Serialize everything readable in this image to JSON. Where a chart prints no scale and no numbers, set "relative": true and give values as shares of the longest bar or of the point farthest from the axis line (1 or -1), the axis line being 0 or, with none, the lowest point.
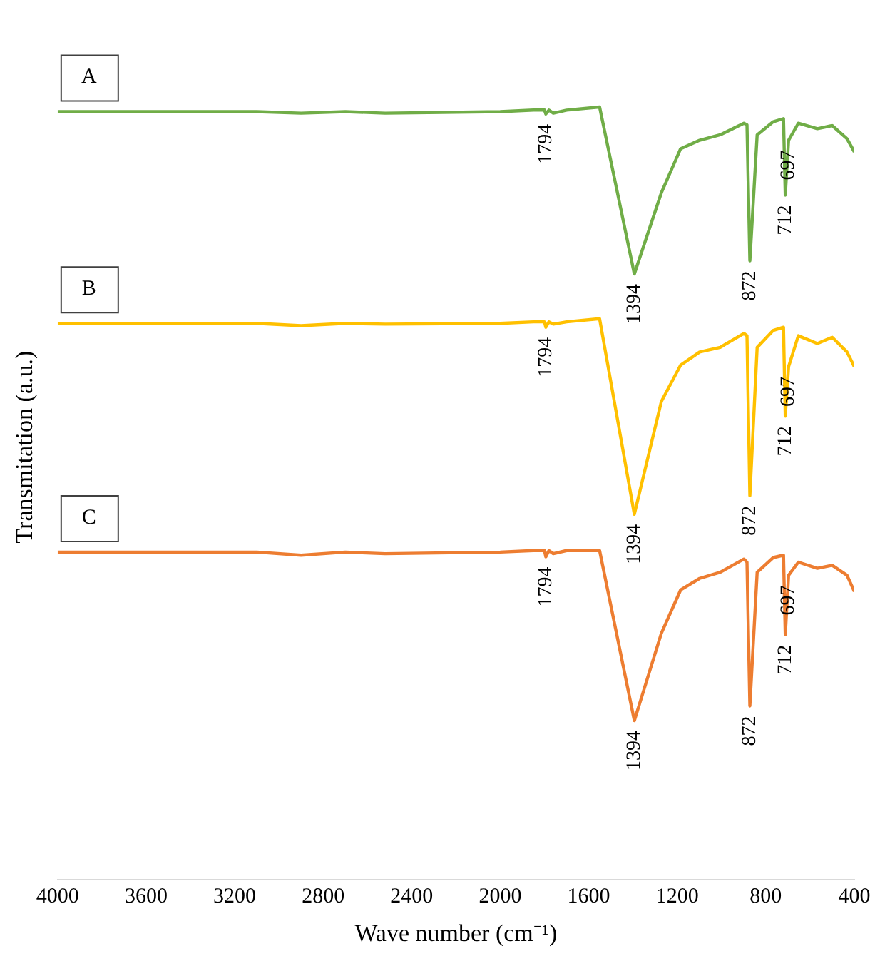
{
  "chart_data": {
    "type": "line",
    "relative": true,
    "xlabel": "Wave number (cm⁻¹)",
    "ylabel": "Transmitation (a.u.)",
    "xlim": [
      4000,
      400
    ],
    "xticks": [
      4000,
      3600,
      3200,
      2800,
      2400,
      2000,
      1600,
      1200,
      800,
      400
    ],
    "x": [
      4000,
      3600,
      3100,
      2900,
      2700,
      2520,
      2000,
      1850,
      1800,
      1794,
      1780,
      1760,
      1700,
      1551,
      1394,
      1272,
      1185,
      1099,
      1006,
      899,
      885,
      872,
      839,
      766,
      720,
      712,
      697,
      653,
      567,
      500,
      433,
      400
    ],
    "series": [
      {
        "name": "A",
        "color": "#70ad47",
        "values": [
          0.994,
          0.994,
          0.994,
          0.992,
          0.994,
          0.992,
          0.994,
          0.996,
          0.996,
          0.991,
          0.996,
          0.992,
          0.996,
          1,
          0.784,
          0.889,
          0.946,
          0.957,
          0.964,
          0.979,
          0.977,
          0.801,
          0.964,
          0.981,
          0.985,
          0.886,
          0.957,
          0.979,
          0.972,
          0.976,
          0.959,
          0.942
        ]
      },
      {
        "name": "B",
        "color": "#ffc000",
        "values": [
          0.72,
          0.72,
          0.72,
          0.717,
          0.72,
          0.719,
          0.72,
          0.722,
          0.722,
          0.715,
          0.722,
          0.719,
          0.722,
          0.726,
          0.473,
          0.619,
          0.666,
          0.683,
          0.689,
          0.707,
          0.704,
          0.497,
          0.689,
          0.711,
          0.715,
          0.6,
          0.664,
          0.704,
          0.694,
          0.702,
          0.683,
          0.664
        ]
      },
      {
        "name": "C",
        "color": "#ed7d31",
        "values": [
          0.424,
          0.424,
          0.424,
          0.42,
          0.424,
          0.422,
          0.424,
          0.426,
          0.426,
          0.418,
          0.426,
          0.422,
          0.426,
          0.426,
          0.206,
          0.319,
          0.375,
          0.39,
          0.398,
          0.415,
          0.411,
          0.225,
          0.398,
          0.417,
          0.42,
          0.317,
          0.394,
          0.411,
          0.403,
          0.407,
          0.394,
          0.373
        ]
      }
    ],
    "annotations": [
      {
        "text": "1794",
        "x": 1794,
        "y": 0.991
      },
      {
        "text": "1394",
        "x": 1394,
        "y": 0.784
      },
      {
        "text": "872",
        "x": 872,
        "y": 0.801
      },
      {
        "text": "712",
        "x": 712,
        "y": 0.886
      },
      {
        "text": "697",
        "x": 697,
        "y": 0.957
      },
      {
        "text": "1794",
        "x": 1794,
        "y": 0.715
      },
      {
        "text": "1394",
        "x": 1394,
        "y": 0.473
      },
      {
        "text": "872",
        "x": 872,
        "y": 0.497
      },
      {
        "text": "712",
        "x": 712,
        "y": 0.6
      },
      {
        "text": "697",
        "x": 697,
        "y": 0.664
      },
      {
        "text": "1794",
        "x": 1794,
        "y": 0.418
      },
      {
        "text": "1394",
        "x": 1394,
        "y": 0.206
      },
      {
        "text": "872",
        "x": 872,
        "y": 0.225
      },
      {
        "text": "712",
        "x": 712,
        "y": 0.317
      },
      {
        "text": "697",
        "x": 697,
        "y": 0.394
      }
    ],
    "legend": false,
    "grid": false,
    "marker": "none",
    "line_style": "solid"
  }
}
